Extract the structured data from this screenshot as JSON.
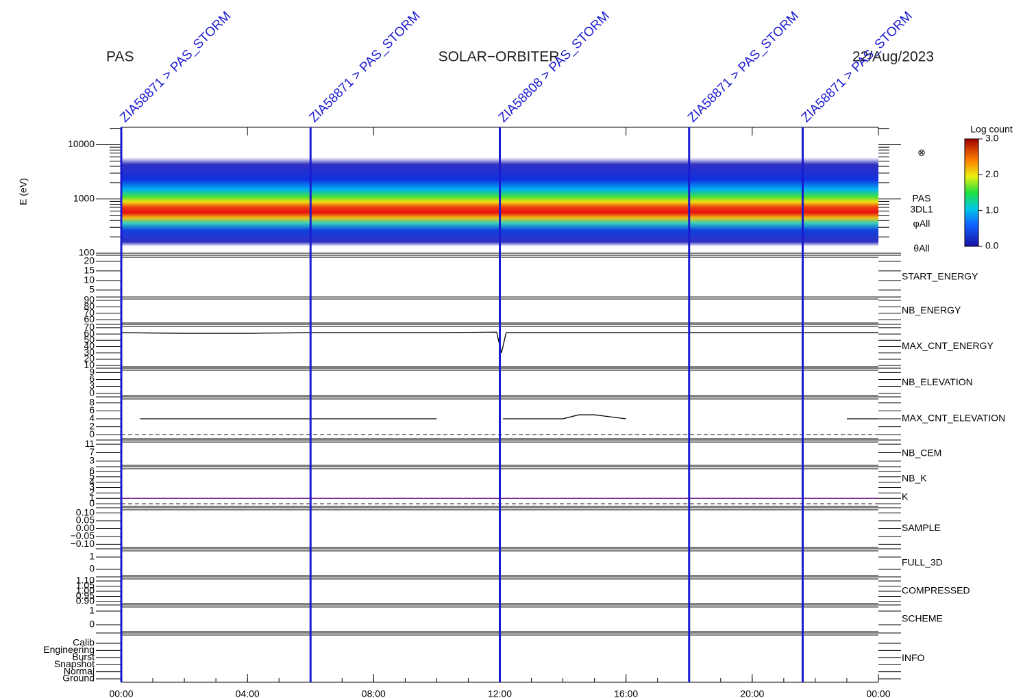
{
  "chart_data": {
    "type": "timeseries-panels",
    "title_left": "PAS",
    "title": "SOLAR−ORBITER",
    "title_right": "22/Aug/2023",
    "xlim": [
      0,
      24
    ],
    "xticks": [
      {
        "value": 0,
        "label": "00:00"
      },
      {
        "value": 4,
        "label": "04:00"
      },
      {
        "value": 8,
        "label": "08:00"
      },
      {
        "value": 12,
        "label": "12:00"
      },
      {
        "value": 16,
        "label": "16:00"
      },
      {
        "value": 20,
        "label": "20:00"
      },
      {
        "value": 24,
        "label": "00:00"
      }
    ],
    "events": [
      {
        "x": 0,
        "label": "ZIA58871 > PAS_STORM"
      },
      {
        "x": 6,
        "label": "ZIA58871 > PAS_STORM"
      },
      {
        "x": 12,
        "label": "ZIA58808 > PAS_STORM"
      },
      {
        "x": 18,
        "label": "ZIA58871 > PAS_STORM"
      },
      {
        "x": 21.6,
        "label": "ZIA58871 > PAS_STORM"
      }
    ],
    "spectrogram": {
      "ylabel": "E (eV)",
      "log": true,
      "ylim": [
        100,
        21000
      ],
      "yticks": [
        100,
        1000,
        10000
      ],
      "side_labels": [
        "PAS",
        "3DL1",
        "φAll",
        "θAll"
      ],
      "colorbar": {
        "title": "Log count",
        "lim": [
          0,
          3
        ],
        "ticks": [
          {
            "value": 0,
            "label": "0.0"
          },
          {
            "value": 1,
            "label": "1.0"
          },
          {
            "value": 2,
            "label": "2.0"
          },
          {
            "value": 3,
            "label": "3.0"
          }
        ]
      }
    },
    "panels": [
      {
        "label": "START_ENERGY",
        "label_color": "#000000",
        "ylim": [
          1.4,
          22.1
        ],
        "yticks": [
          5,
          10,
          15,
          20
        ]
      },
      {
        "label": "NB_ENERGY",
        "label_color": "#1a1aa6",
        "ylim": [
          55,
          92
        ],
        "yticks": [
          60,
          70,
          80,
          90
        ]
      },
      {
        "label": "MAX_CNT_ENERGY",
        "label_color": "#000000",
        "ylim": [
          8,
          72
        ],
        "yticks": [
          10,
          20,
          30,
          40,
          50,
          60,
          70
        ],
        "series": [
          {
            "color": "#000000",
            "x": [
              0,
              2,
              4,
              6,
              8,
              10,
              11.9,
              12.05,
              12.2,
              14,
              16,
              18,
              20,
              22,
              24
            ],
            "values": [
              62,
              61,
              61,
              62,
              62,
              62,
              63,
              30,
              62,
              62,
              62,
              62,
              62,
              62,
              62
            ]
          }
        ]
      },
      {
        "label": "NB_ELEVATION",
        "label_color": "#1a1aa6",
        "ylim": [
          -1,
          10
        ],
        "yticks": [
          0,
          3,
          6,
          9
        ]
      },
      {
        "label": "MAX_CNT_ELEVATION",
        "label_color": "#000000",
        "ylim": [
          -1,
          9
        ],
        "yticks": [
          0,
          2,
          4,
          6,
          8
        ],
        "reference_line": 0,
        "series": [
          {
            "color": "#000000",
            "x": [
              0.6,
              2,
              4,
              6,
              8,
              10,
              11,
              12.1,
              13,
              14,
              14.5,
              15,
              16,
              17,
              23,
              24
            ],
            "values": [
              4,
              4,
              4,
              4,
              4,
              4,
              null,
              4,
              4,
              4,
              5,
              5,
              4,
              null,
              4,
              4
            ]
          }
        ]
      },
      {
        "label": "NB_CEM",
        "label_color": "#1a1aa6",
        "ylim": [
          1,
          12
        ],
        "yticks": [
          3,
          7,
          11
        ]
      },
      {
        "label": "NB_K",
        "label_color": "#cc2020",
        "label2": "K",
        "label2_color": "#1a1aa6",
        "ylim": [
          -0.5,
          6.5
        ],
        "yticks": [
          0,
          1,
          2,
          3,
          4,
          5,
          6
        ],
        "reference_line": 0,
        "series": [
          {
            "color": "#cc2020",
            "x": [
              0,
              24
            ],
            "values": [
              1,
              1
            ]
          },
          {
            "color": "#6a2a9a",
            "x": [
              0,
              24
            ],
            "values": [
              1,
              1
            ]
          }
        ]
      },
      {
        "label": "SAMPLE",
        "label_color": "#1a1aa6",
        "ylim": [
          -0.12,
          0.12
        ],
        "yticks": [
          {
            "value": -0.1,
            "label": "−0.10"
          },
          {
            "value": -0.05,
            "label": "−0.05"
          },
          {
            "value": 0,
            "label": "0.00"
          },
          {
            "value": 0.05,
            "label": "0.05"
          },
          {
            "value": 0.1,
            "label": "0.10"
          }
        ]
      },
      {
        "label": "FULL_3D",
        "label_color": "#1a1aa6",
        "ylim": [
          -0.5,
          1.5
        ],
        "yticks": [
          0,
          1
        ]
      },
      {
        "label": "COMPRESSED",
        "label_color": "#000000",
        "ylim": [
          0.88,
          1.12
        ],
        "yticks": [
          {
            "value": 0.9,
            "label": "0.90"
          },
          {
            "value": 0.95,
            "label": "0.95"
          },
          {
            "value": 1,
            "label": "1.00"
          },
          {
            "value": 1.05,
            "label": "1.05"
          },
          {
            "value": 1.1,
            "label": "1.10"
          }
        ]
      },
      {
        "label": "SCHEME",
        "label_color": "#000000",
        "ylim": [
          -0.5,
          1.3
        ],
        "yticks": [
          0,
          1
        ]
      },
      {
        "label": "INFO",
        "label_color": "#000000",
        "categories": [
          "Calib",
          "Engineering",
          "Burst",
          "Snapshot",
          "Normal",
          "Ground"
        ]
      }
    ]
  }
}
